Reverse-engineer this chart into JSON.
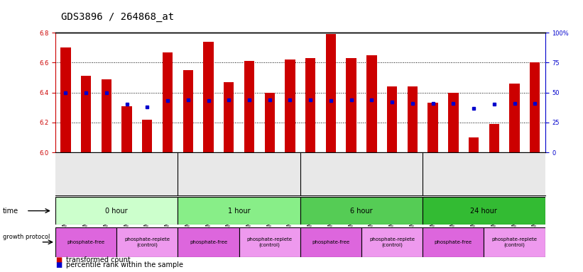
{
  "title": "GDS3896 / 264868_at",
  "samples": [
    "GSM618325",
    "GSM618333",
    "GSM618341",
    "GSM618324",
    "GSM618332",
    "GSM618340",
    "GSM618327",
    "GSM618335",
    "GSM618343",
    "GSM618326",
    "GSM618334",
    "GSM618342",
    "GSM618329",
    "GSM618337",
    "GSM618345",
    "GSM618328",
    "GSM618336",
    "GSM618344",
    "GSM618331",
    "GSM618339",
    "GSM618347",
    "GSM618330",
    "GSM618338",
    "GSM618346"
  ],
  "transformed_counts": [
    6.7,
    6.51,
    6.49,
    6.31,
    6.22,
    6.67,
    6.55,
    6.74,
    6.47,
    6.61,
    6.4,
    6.62,
    6.63,
    6.79,
    6.63,
    6.65,
    6.44,
    6.44,
    6.33,
    6.4,
    6.1,
    6.19,
    6.46,
    6.6
  ],
  "percentile_ranks": [
    50,
    50,
    50,
    40,
    38,
    43,
    44,
    43,
    44,
    44,
    44,
    44,
    44,
    43,
    44,
    44,
    42,
    41,
    41,
    41,
    37,
    40,
    41,
    41
  ],
  "ylim_left": [
    6.0,
    6.8
  ],
  "ylim_right": [
    0,
    100
  ],
  "yticks_left": [
    6.0,
    6.2,
    6.4,
    6.6,
    6.8
  ],
  "yticks_right": [
    0,
    25,
    50,
    75,
    100
  ],
  "ytick_right_labels": [
    "0",
    "25",
    "50",
    "75",
    "100%"
  ],
  "bar_color": "#cc0000",
  "dot_color": "#0000cc",
  "bar_bottom": 6.0,
  "time_groups": [
    {
      "label": "0 hour",
      "start": 0,
      "end": 6,
      "color": "#ccffcc"
    },
    {
      "label": "1 hour",
      "start": 6,
      "end": 12,
      "color": "#88ee88"
    },
    {
      "label": "6 hour",
      "start": 12,
      "end": 18,
      "color": "#55cc55"
    },
    {
      "label": "24 hour",
      "start": 18,
      "end": 24,
      "color": "#33bb33"
    }
  ],
  "protocol_groups": [
    {
      "label": "phosphate-free",
      "start": 0,
      "end": 3,
      "color": "#dd66dd"
    },
    {
      "label": "phosphate-replete\n(control)",
      "start": 3,
      "end": 6,
      "color": "#ee99ee"
    },
    {
      "label": "phosphate-free",
      "start": 6,
      "end": 9,
      "color": "#dd66dd"
    },
    {
      "label": "phosphate-replete\n(control)",
      "start": 9,
      "end": 12,
      "color": "#ee99ee"
    },
    {
      "label": "phosphate-free",
      "start": 12,
      "end": 15,
      "color": "#dd66dd"
    },
    {
      "label": "phosphate-replete\n(control)",
      "start": 15,
      "end": 18,
      "color": "#ee99ee"
    },
    {
      "label": "phosphate-free",
      "start": 18,
      "end": 21,
      "color": "#dd66dd"
    },
    {
      "label": "phosphate-replete\n(control)",
      "start": 21,
      "end": 24,
      "color": "#ee99ee"
    }
  ],
  "bg_color": "#ffffff",
  "axis_label_color_left": "#cc0000",
  "axis_label_color_right": "#0000cc",
  "title_fontsize": 10,
  "tick_fontsize": 6,
  "sample_fontsize": 6,
  "annotation_fontsize": 7,
  "legend_fontsize": 7
}
